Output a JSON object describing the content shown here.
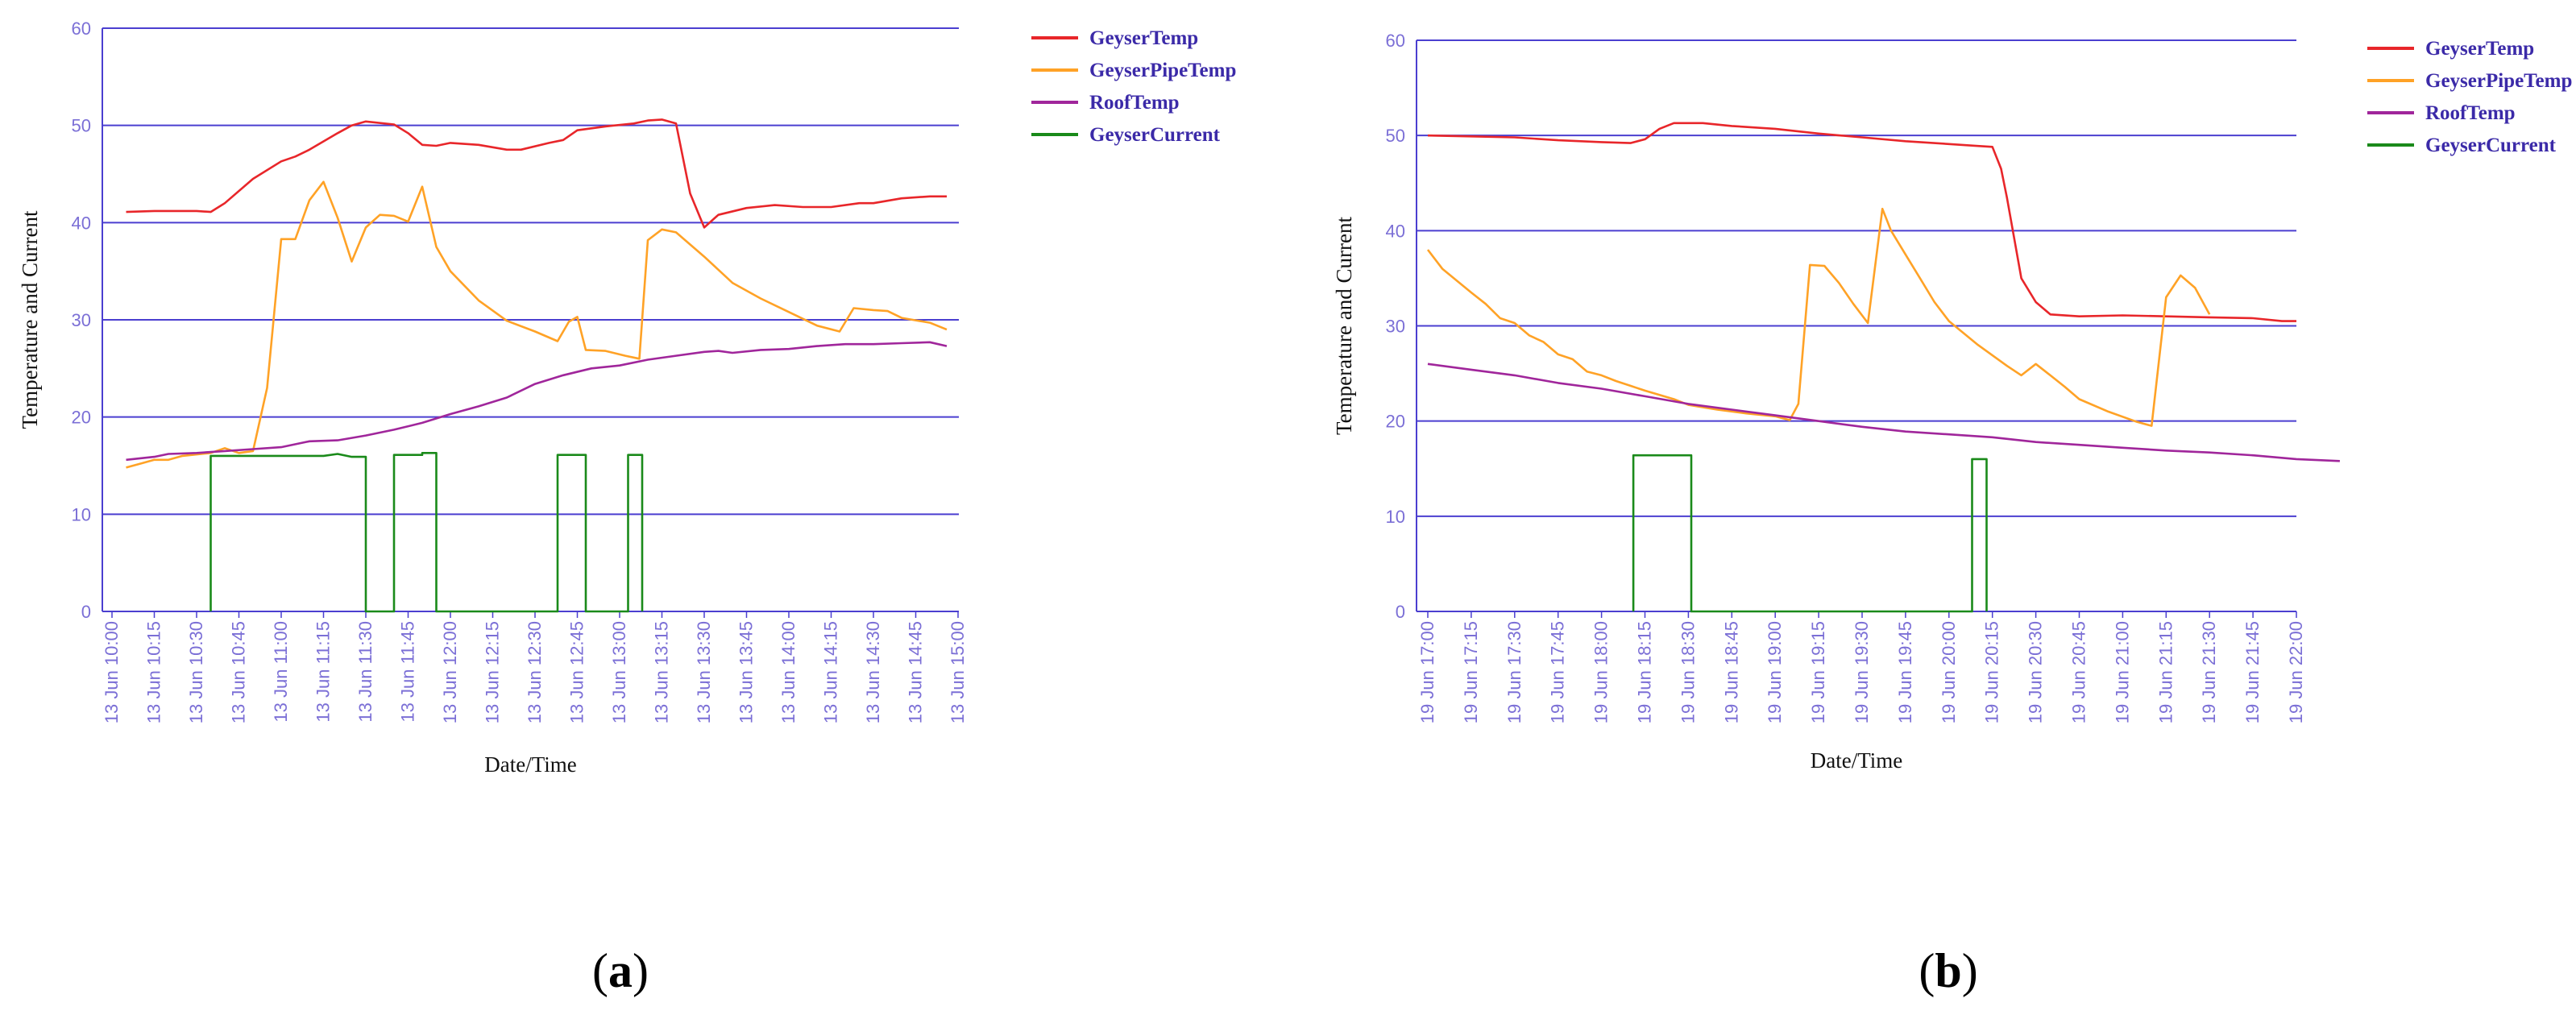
{
  "chart_data": [
    {
      "type": "line",
      "panel_label": "a",
      "xlabel": "Date/Time",
      "ylabel": "Temperature and Current",
      "ylim": [
        0,
        60
      ],
      "yticks": [
        0,
        10,
        20,
        30,
        40,
        50,
        60
      ],
      "xlim": [
        0,
        300
      ],
      "x_unit": "minutes after 13 Jun 10:00",
      "x_tick_labels": [
        "13 Jun 10:00",
        "13 Jun 10:15",
        "13 Jun 10:30",
        "13 Jun 10:45",
        "13 Jun 11:00",
        "13 Jun 11:15",
        "13 Jun 11:30",
        "13 Jun 11:45",
        "13 Jun 12:00",
        "13 Jun 12:15",
        "13 Jun 12:30",
        "13 Jun 12:45",
        "13 Jun 13:00",
        "13 Jun 13:15",
        "13 Jun 13:30",
        "13 Jun 13:45",
        "13 Jun 14:00",
        "13 Jun 14:15",
        "13 Jun 14:30",
        "13 Jun 14:45",
        "13 Jun 15:00"
      ],
      "grid": true,
      "legend_position": "top-right",
      "series": [
        {
          "name": "GeyserTemp",
          "color": "#e8262a",
          "points": [
            [
              5,
              41.1
            ],
            [
              15,
              41.2
            ],
            [
              30,
              41.2
            ],
            [
              35,
              41.1
            ],
            [
              40,
              42.0
            ],
            [
              50,
              44.5
            ],
            [
              60,
              46.3
            ],
            [
              65,
              46.8
            ],
            [
              70,
              47.5
            ],
            [
              80,
              49.2
            ],
            [
              85,
              50.0
            ],
            [
              90,
              50.4
            ],
            [
              100,
              50.1
            ],
            [
              105,
              49.2
            ],
            [
              110,
              48.0
            ],
            [
              115,
              47.9
            ],
            [
              120,
              48.2
            ],
            [
              130,
              48.0
            ],
            [
              140,
              47.5
            ],
            [
              145,
              47.5
            ],
            [
              155,
              48.2
            ],
            [
              160,
              48.5
            ],
            [
              165,
              49.5
            ],
            [
              175,
              49.9
            ],
            [
              185,
              50.2
            ],
            [
              190,
              50.5
            ],
            [
              195,
              50.6
            ],
            [
              200,
              50.2
            ],
            [
              205,
              43.0
            ],
            [
              210,
              39.5
            ],
            [
              215,
              40.8
            ],
            [
              225,
              41.5
            ],
            [
              235,
              41.8
            ],
            [
              245,
              41.6
            ],
            [
              255,
              41.6
            ],
            [
              265,
              42.0
            ],
            [
              270,
              42.0
            ],
            [
              280,
              42.5
            ],
            [
              290,
              42.7
            ],
            [
              296,
              42.7
            ]
          ]
        },
        {
          "name": "GeyserPipeTemp",
          "color": "#ffa226",
          "points": [
            [
              5,
              14.8
            ],
            [
              10,
              15.2
            ],
            [
              15,
              15.6
            ],
            [
              20,
              15.6
            ],
            [
              25,
              16.0
            ],
            [
              35,
              16.3
            ],
            [
              40,
              16.8
            ],
            [
              45,
              16.3
            ],
            [
              50,
              16.5
            ],
            [
              55,
              23.0
            ],
            [
              60,
              38.3
            ],
            [
              65,
              38.3
            ],
            [
              70,
              42.3
            ],
            [
              75,
              44.2
            ],
            [
              80,
              40.5
            ],
            [
              85,
              36.0
            ],
            [
              90,
              39.5
            ],
            [
              95,
              40.8
            ],
            [
              100,
              40.7
            ],
            [
              105,
              40.1
            ],
            [
              110,
              43.7
            ],
            [
              115,
              37.5
            ],
            [
              120,
              35.0
            ],
            [
              130,
              32.0
            ],
            [
              140,
              29.9
            ],
            [
              150,
              28.8
            ],
            [
              158,
              27.8
            ],
            [
              162,
              29.8
            ],
            [
              165,
              30.3
            ],
            [
              168,
              26.9
            ],
            [
              175,
              26.8
            ],
            [
              182,
              26.3
            ],
            [
              187,
              26.0
            ],
            [
              190,
              38.2
            ],
            [
              195,
              39.3
            ],
            [
              200,
              39.0
            ],
            [
              210,
              36.5
            ],
            [
              220,
              33.8
            ],
            [
              230,
              32.2
            ],
            [
              240,
              30.8
            ],
            [
              250,
              29.4
            ],
            [
              258,
              28.8
            ],
            [
              263,
              31.2
            ],
            [
              270,
              31.0
            ],
            [
              275,
              30.9
            ],
            [
              280,
              30.2
            ],
            [
              290,
              29.7
            ],
            [
              296,
              29.0
            ]
          ]
        },
        {
          "name": "RoofTemp",
          "color": "#a0269b",
          "points": [
            [
              5,
              15.6
            ],
            [
              15,
              15.9
            ],
            [
              20,
              16.2
            ],
            [
              30,
              16.3
            ],
            [
              40,
              16.5
            ],
            [
              50,
              16.7
            ],
            [
              60,
              16.9
            ],
            [
              70,
              17.5
            ],
            [
              80,
              17.6
            ],
            [
              90,
              18.1
            ],
            [
              100,
              18.7
            ],
            [
              110,
              19.4
            ],
            [
              120,
              20.3
            ],
            [
              130,
              21.1
            ],
            [
              140,
              22.0
            ],
            [
              150,
              23.4
            ],
            [
              160,
              24.3
            ],
            [
              170,
              25.0
            ],
            [
              180,
              25.3
            ],
            [
              190,
              25.9
            ],
            [
              200,
              26.3
            ],
            [
              210,
              26.7
            ],
            [
              215,
              26.8
            ],
            [
              220,
              26.6
            ],
            [
              230,
              26.9
            ],
            [
              240,
              27.0
            ],
            [
              250,
              27.3
            ],
            [
              260,
              27.5
            ],
            [
              270,
              27.5
            ],
            [
              280,
              27.6
            ],
            [
              290,
              27.7
            ],
            [
              296,
              27.3
            ]
          ]
        },
        {
          "name": "GeyserCurrent",
          "color": "#1a8a1a",
          "points": [
            [
              35,
              0
            ],
            [
              35,
              16.0
            ],
            [
              75,
              16.0
            ],
            [
              80,
              16.2
            ],
            [
              85,
              15.9
            ],
            [
              90,
              15.9
            ],
            [
              90,
              0
            ],
            [
              100,
              0
            ],
            [
              100,
              16.1
            ],
            [
              110,
              16.1
            ],
            [
              110,
              16.3
            ],
            [
              115,
              16.3
            ],
            [
              115,
              0
            ],
            [
              158,
              0
            ],
            [
              158,
              16.1
            ],
            [
              168,
              16.1
            ],
            [
              168,
              0
            ],
            [
              183,
              0
            ],
            [
              183,
              16.1
            ],
            [
              188,
              16.1
            ],
            [
              188,
              0
            ]
          ]
        }
      ]
    },
    {
      "type": "line",
      "panel_label": "b",
      "xlabel": "Date/Time",
      "ylabel": "Temperature and Current",
      "ylim": [
        0,
        60
      ],
      "yticks": [
        0,
        10,
        20,
        30,
        40,
        50,
        60
      ],
      "xlim": [
        0,
        300
      ],
      "x_unit": "minutes after 19 Jun 17:00",
      "x_tick_labels": [
        "19 Jun 17:00",
        "19 Jun 17:15",
        "19 Jun 17:30",
        "19 Jun 17:45",
        "19 Jun 18:00",
        "19 Jun 18:15",
        "19 Jun 18:30",
        "19 Jun 18:45",
        "19 Jun 19:00",
        "19 Jun 19:15",
        "19 Jun 19:30",
        "19 Jun 19:45",
        "19 Jun 20:00",
        "19 Jun 20:15",
        "19 Jun 20:30",
        "19 Jun 20:45",
        "19 Jun 21:00",
        "19 Jun 21:15",
        "19 Jun 21:30",
        "19 Jun 21:45",
        "19 Jun 22:00"
      ],
      "grid": true,
      "legend_position": "top-right",
      "series": [
        {
          "name": "GeyserTemp",
          "color": "#e8262a",
          "points": [
            [
              0,
              50.0
            ],
            [
              15,
              49.9
            ],
            [
              30,
              49.8
            ],
            [
              45,
              49.5
            ],
            [
              60,
              49.3
            ],
            [
              70,
              49.2
            ],
            [
              75,
              49.6
            ],
            [
              80,
              50.7
            ],
            [
              85,
              51.3
            ],
            [
              95,
              51.3
            ],
            [
              105,
              51.0
            ],
            [
              120,
              50.7
            ],
            [
              135,
              50.2
            ],
            [
              150,
              49.8
            ],
            [
              165,
              49.4
            ],
            [
              180,
              49.1
            ],
            [
              190,
              48.9
            ],
            [
              195,
              48.8
            ],
            [
              198,
              46.5
            ],
            [
              200,
              43.5
            ],
            [
              205,
              35.0
            ],
            [
              210,
              32.5
            ],
            [
              215,
              31.2
            ],
            [
              225,
              31.0
            ],
            [
              240,
              31.1
            ],
            [
              255,
              31.0
            ],
            [
              270,
              30.9
            ],
            [
              285,
              30.8
            ],
            [
              295,
              30.5
            ],
            [
              300,
              30.5
            ]
          ]
        },
        {
          "name": "GeyserPipeTemp",
          "color": "#ffa226",
          "points": [
            [
              0,
              38.0
            ],
            [
              5,
              36.0
            ],
            [
              15,
              33.5
            ],
            [
              20,
              32.3
            ],
            [
              25,
              30.8
            ],
            [
              30,
              30.3
            ],
            [
              35,
              29.0
            ],
            [
              40,
              28.3
            ],
            [
              45,
              27.0
            ],
            [
              50,
              26.5
            ],
            [
              55,
              25.2
            ],
            [
              60,
              24.8
            ],
            [
              65,
              24.2
            ],
            [
              70,
              23.7
            ],
            [
              75,
              23.2
            ],
            [
              85,
              22.3
            ],
            [
              90,
              21.7
            ],
            [
              100,
              21.2
            ],
            [
              110,
              20.8
            ],
            [
              120,
              20.5
            ],
            [
              125,
              20.1
            ],
            [
              128,
              21.8
            ],
            [
              132,
              36.4
            ],
            [
              137,
              36.3
            ],
            [
              142,
              34.5
            ],
            [
              147,
              32.3
            ],
            [
              152,
              30.3
            ],
            [
              157,
              42.3
            ],
            [
              160,
              40.0
            ],
            [
              165,
              37.5
            ],
            [
              170,
              35.0
            ],
            [
              175,
              32.5
            ],
            [
              180,
              30.5
            ],
            [
              190,
              28.0
            ],
            [
              200,
              25.8
            ],
            [
              205,
              24.8
            ],
            [
              210,
              26.0
            ],
            [
              215,
              24.8
            ],
            [
              220,
              23.6
            ],
            [
              225,
              22.3
            ],
            [
              235,
              21.0
            ],
            [
              245,
              19.9
            ],
            [
              250,
              19.5
            ],
            [
              255,
              33.0
            ],
            [
              260,
              35.3
            ],
            [
              265,
              34.0
            ],
            [
              270,
              31.2
            ]
          ]
        },
        {
          "name": "RoofTemp",
          "color": "#a0269b",
          "points": [
            [
              0,
              26.0
            ],
            [
              15,
              25.4
            ],
            [
              30,
              24.8
            ],
            [
              45,
              24.0
            ],
            [
              60,
              23.4
            ],
            [
              75,
              22.6
            ],
            [
              90,
              21.8
            ],
            [
              105,
              21.2
            ],
            [
              120,
              20.6
            ],
            [
              135,
              20.0
            ],
            [
              150,
              19.4
            ],
            [
              165,
              18.9
            ],
            [
              180,
              18.6
            ],
            [
              195,
              18.3
            ],
            [
              210,
              17.8
            ],
            [
              225,
              17.5
            ],
            [
              240,
              17.2
            ],
            [
              255,
              16.9
            ],
            [
              270,
              16.7
            ],
            [
              285,
              16.4
            ],
            [
              300,
              16.0
            ],
            [
              315,
              15.8
            ]
          ]
        },
        {
          "name": "GeyserCurrent",
          "color": "#1a8a1a",
          "points": [
            [
              71,
              0
            ],
            [
              71,
              16.4
            ],
            [
              91,
              16.4
            ],
            [
              91,
              0
            ],
            [
              188,
              0
            ],
            [
              188,
              16.0
            ],
            [
              193,
              16.0
            ],
            [
              193,
              0
            ]
          ]
        }
      ]
    }
  ]
}
